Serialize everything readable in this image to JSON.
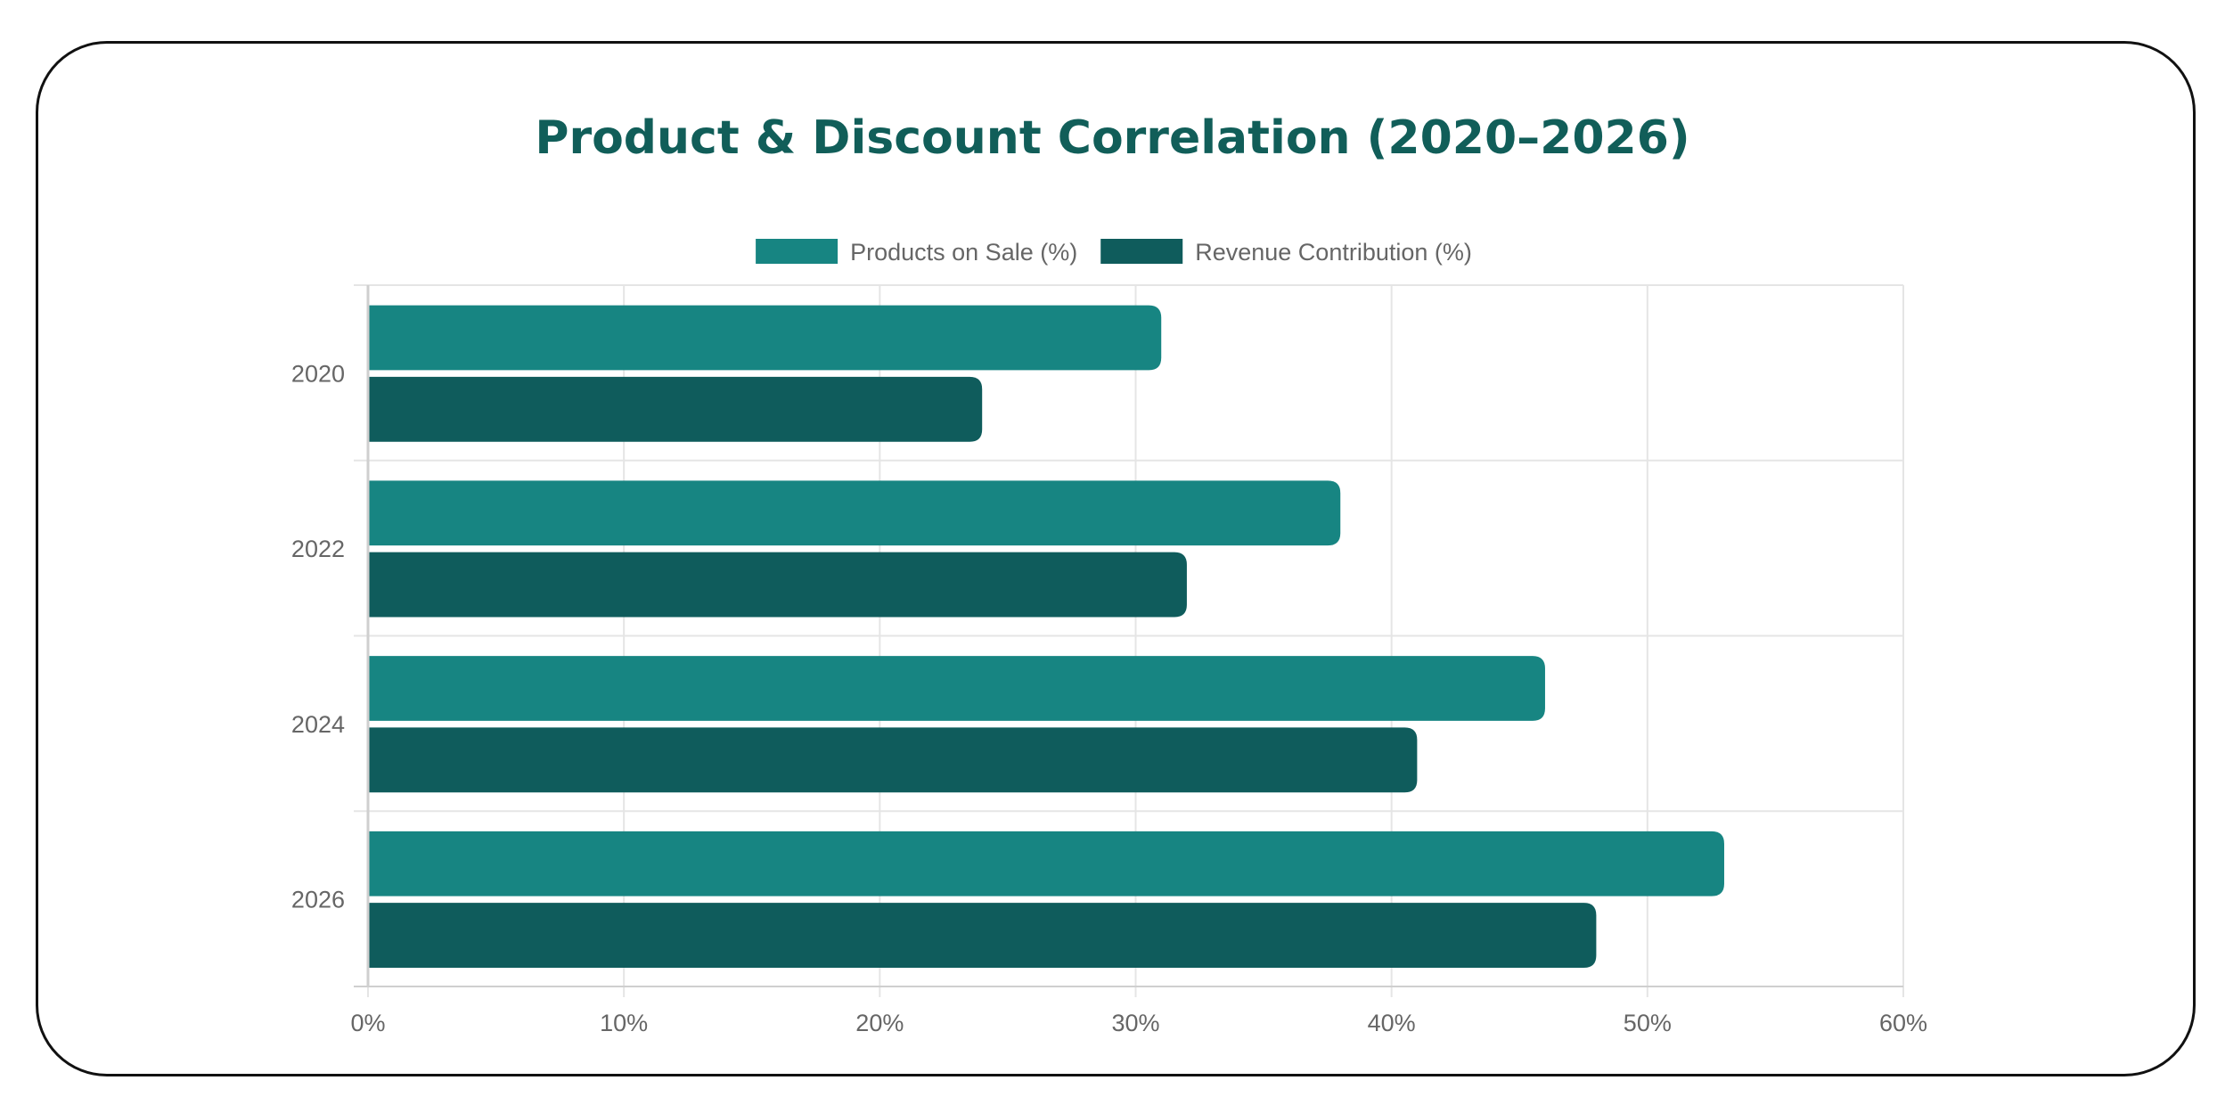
{
  "chart_data": {
    "type": "bar",
    "orientation": "horizontal",
    "title": "Product & Discount Correlation (2020–2026)",
    "categories": [
      "2020",
      "2022",
      "2024",
      "2026"
    ],
    "series": [
      {
        "name": "Products on Sale (%)",
        "values": [
          31,
          38,
          46,
          53
        ],
        "color": "#178582"
      },
      {
        "name": "Revenue Contribution (%)",
        "values": [
          24,
          32,
          41,
          48
        ],
        "color": "#0f5c5c"
      }
    ],
    "xlim": [
      0,
      60
    ],
    "xticks": [
      "0%",
      "10%",
      "20%",
      "30%",
      "40%",
      "50%",
      "60%"
    ],
    "xlabel": "",
    "ylabel": "",
    "grid": true,
    "legend": "top-center"
  },
  "colors": {
    "title": "#115e59",
    "grid": "#e5e5e5",
    "text": "#666666"
  }
}
